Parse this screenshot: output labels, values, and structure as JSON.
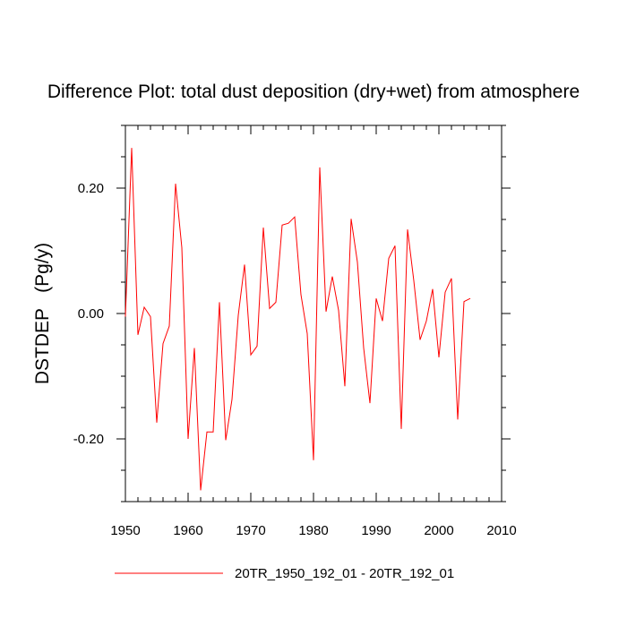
{
  "chart_data": {
    "type": "line",
    "title": "Difference Plot: total dust deposition (dry+wet) from atmosphere",
    "ylabel": "DSTDEP   (Pg/y)",
    "xlabel": "",
    "xlim": [
      1950,
      2010
    ],
    "ylim": [
      -0.3,
      0.3
    ],
    "x_ticks": [
      1950,
      1960,
      1970,
      1980,
      1990,
      2000,
      2010
    ],
    "x_tick_labels": [
      "1950",
      "1960",
      "1970",
      "1980",
      "1990",
      "2000",
      "2010"
    ],
    "y_ticks": [
      -0.2,
      0.0,
      0.2
    ],
    "y_tick_labels": [
      "-0.20",
      "0.00",
      "0.20"
    ],
    "grid": false,
    "legend_position": "bottom-center",
    "series": [
      {
        "name": "20TR_1950_192_01 - 20TR_192_01",
        "color": "#ff0000",
        "x": [
          1950,
          1951,
          1952,
          1953,
          1954,
          1955,
          1956,
          1957,
          1958,
          1959,
          1960,
          1961,
          1962,
          1963,
          1964,
          1965,
          1966,
          1967,
          1968,
          1969,
          1970,
          1971,
          1972,
          1973,
          1974,
          1975,
          1976,
          1977,
          1978,
          1979,
          1980,
          1981,
          1982,
          1983,
          1984,
          1985,
          1986,
          1987,
          1988,
          1989,
          1990,
          1991,
          1992,
          1993,
          1994,
          1995,
          1996,
          1997,
          1998,
          1999,
          2000,
          2001,
          2002,
          2003,
          2004,
          2005
        ],
        "y": [
          -0.005,
          0.264,
          -0.034,
          0.01,
          -0.005,
          -0.174,
          -0.048,
          -0.02,
          0.207,
          0.105,
          -0.2,
          -0.055,
          -0.282,
          -0.189,
          -0.189,
          0.018,
          -0.202,
          -0.137,
          -0.003,
          0.078,
          -0.066,
          -0.052,
          0.137,
          0.008,
          0.018,
          0.141,
          0.144,
          0.154,
          0.03,
          -0.032,
          -0.234,
          0.233,
          0.003,
          0.059,
          0.005,
          -0.116,
          0.151,
          0.082,
          -0.055,
          -0.143,
          0.024,
          -0.012,
          0.088,
          0.108,
          -0.184,
          0.134,
          0.052,
          -0.042,
          -0.012,
          0.039,
          -0.07,
          0.034,
          0.056,
          -0.169,
          0.019,
          0.024
        ]
      }
    ]
  }
}
